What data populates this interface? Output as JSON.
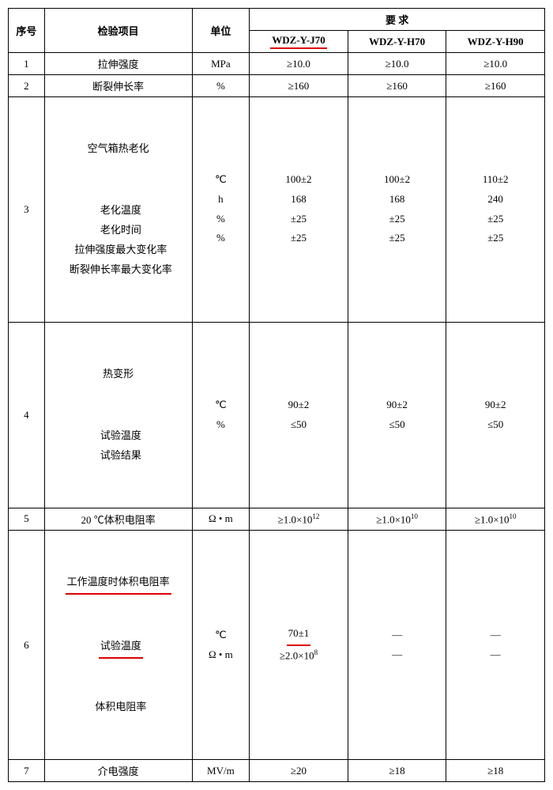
{
  "headers": {
    "idx": "序号",
    "item": "检验项目",
    "unit": "单位",
    "req": "要 求",
    "c1": "WDZ-Y-J70",
    "c2": "WDZ-Y-H70",
    "c3": "WDZ-Y-H90"
  },
  "rows": [
    {
      "n": "1",
      "item": "拉伸强度",
      "unit": "MPa",
      "v": [
        "≥10.0",
        "≥10.0",
        "≥10.0"
      ]
    },
    {
      "n": "2",
      "item": "断裂伸长率",
      "unit": "%",
      "v": [
        "≥160",
        "≥160",
        "≥160"
      ]
    }
  ],
  "row3": {
    "n": "3",
    "head": "空气箱热老化",
    "items": [
      "  老化温度",
      "  老化时间",
      "  拉伸强度最大变化率",
      "  断裂伸长率最大变化率"
    ],
    "units": [
      "℃",
      "h",
      "%",
      "%"
    ],
    "vals": [
      [
        "100±2",
        "168",
        "±25",
        "±25"
      ],
      [
        "100±2",
        "168",
        "±25",
        "±25"
      ],
      [
        "110±2",
        "240",
        "±25",
        "±25"
      ]
    ]
  },
  "row4": {
    "n": "4",
    "head": "热变形",
    "items": [
      "  试验温度",
      "  试验结果"
    ],
    "units": [
      "℃",
      "%"
    ],
    "vals": [
      [
        "90±2",
        "≤50"
      ],
      [
        "90±2",
        "≤50"
      ],
      [
        "90±2",
        "≤50"
      ]
    ]
  },
  "row5": {
    "n": "5",
    "item": "20 ℃体积电阻率",
    "unit": "Ω • m",
    "v_html": [
      "≥1.0×10<sup>12</sup>",
      "≥1.0×10<sup>10</sup>",
      "≥1.0×10<sup>10</sup>"
    ]
  },
  "row6": {
    "n": "6",
    "head": "工作温度时体积电阻率",
    "items": [
      "  试验温度",
      "  体积电阻率"
    ],
    "units": [
      "℃",
      "Ω • m"
    ],
    "vals_html": [
      [
        "<span class=\"underline-red\">70±1</span>",
        "≥2.0×10<sup>8</sup>"
      ],
      [
        "—",
        "—"
      ],
      [
        "—",
        "—"
      ]
    ]
  },
  "row7": {
    "n": "7",
    "item": "介电强度",
    "unit": "MV/m",
    "v": [
      "≥20",
      "≥18",
      "≥18"
    ]
  }
}
